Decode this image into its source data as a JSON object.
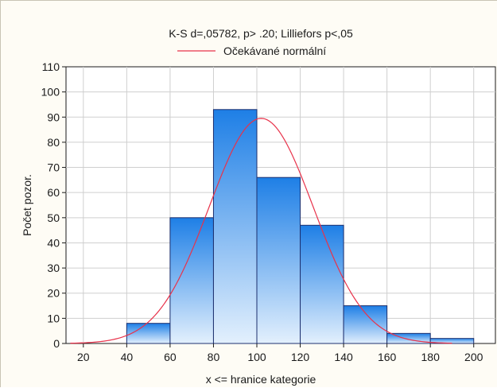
{
  "chart_data": {
    "type": "bar",
    "title": "K-S d=,05782, p> .20; Lilliefors p<,05",
    "legend": {
      "entries": [
        "Očekávané normální"
      ],
      "placement": "top"
    },
    "xlabel": "x <= hranice kategorie",
    "ylabel": "Počet pozor.",
    "xlim": [
      12,
      210
    ],
    "ylim": [
      0,
      110
    ],
    "x_ticks": [
      20,
      40,
      60,
      80,
      100,
      120,
      140,
      160,
      180,
      200
    ],
    "y_ticks": [
      0,
      10,
      20,
      30,
      40,
      50,
      60,
      70,
      80,
      90,
      100,
      110
    ],
    "grid": true,
    "bins": [
      {
        "from": 0,
        "to": 20,
        "value": 0
      },
      {
        "from": 20,
        "to": 40,
        "value": 0
      },
      {
        "from": 40,
        "to": 60,
        "value": 8
      },
      {
        "from": 60,
        "to": 80,
        "value": 50
      },
      {
        "from": 80,
        "to": 100,
        "value": 93
      },
      {
        "from": 100,
        "to": 120,
        "value": 66
      },
      {
        "from": 120,
        "to": 140,
        "value": 47
      },
      {
        "from": 140,
        "to": 160,
        "value": 15
      },
      {
        "from": 160,
        "to": 180,
        "value": 4
      },
      {
        "from": 180,
        "to": 200,
        "value": 2
      }
    ],
    "series": [
      {
        "name": "Očekávané normální",
        "type": "normal-curve",
        "mean": 102,
        "sd": 24,
        "peak": 89.5,
        "x_range": [
          14,
          190
        ]
      }
    ],
    "colors": {
      "bar_top": "#1e7fe6",
      "bar_bottom": "#e3f0fd",
      "bar_edge": "#1c2f6e",
      "curve": "#e8324a"
    }
  }
}
